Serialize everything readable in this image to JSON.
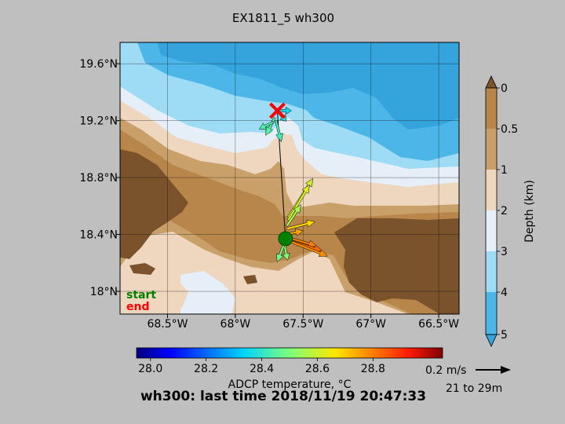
{
  "chart_data": {
    "type": "scatter",
    "title": "EX1811_5 wh300",
    "subtitle": "wh300: last time 2018/11/19 20:47:33",
    "x_ticks": [
      "68.5°W",
      "68°W",
      "67.5°W",
      "67°W",
      "66.5°W"
    ],
    "y_ticks": [
      "19.6°N",
      "19.2°N",
      "18.8°N",
      "18.4°N",
      "18°N"
    ],
    "xlim": [
      -68.85,
      -66.35
    ],
    "ylim": [
      17.84,
      19.75
    ],
    "legend": {
      "start": "start",
      "end": "end",
      "start_color": "#008000",
      "end_color": "#ff0000"
    },
    "track": {
      "start": {
        "lon": -67.63,
        "lat": 18.37
      },
      "end": {
        "lon": -67.69,
        "lat": 19.27
      }
    },
    "vectors": [
      {
        "lon": -67.69,
        "lat": 19.27,
        "u": 0.08,
        "v": 0.0,
        "temp": 28.35
      },
      {
        "lon": -67.69,
        "lat": 19.27,
        "u": 0.05,
        "v": -0.06,
        "temp": 28.38
      },
      {
        "lon": -67.71,
        "lat": 19.22,
        "u": -0.05,
        "v": -0.1,
        "temp": 28.45
      },
      {
        "lon": -67.7,
        "lat": 19.2,
        "u": 0.03,
        "v": -0.12,
        "temp": 28.42
      },
      {
        "lon": -67.72,
        "lat": 19.19,
        "u": -0.08,
        "v": -0.04,
        "temp": 28.44
      },
      {
        "lon": -67.61,
        "lat": 18.52,
        "u": 0.14,
        "v": 0.22,
        "temp": 28.6
      },
      {
        "lon": -67.61,
        "lat": 18.5,
        "u": 0.12,
        "v": 0.2,
        "temp": 28.62
      },
      {
        "lon": -67.62,
        "lat": 18.46,
        "u": 0.08,
        "v": 0.12,
        "temp": 28.55
      },
      {
        "lon": -67.62,
        "lat": 18.44,
        "u": 0.16,
        "v": 0.04,
        "temp": 28.68
      },
      {
        "lon": -67.63,
        "lat": 18.4,
        "u": 0.1,
        "v": 0.02,
        "temp": 28.75
      },
      {
        "lon": -67.62,
        "lat": 18.38,
        "u": 0.17,
        "v": -0.05,
        "temp": 28.8
      },
      {
        "lon": -67.62,
        "lat": 18.36,
        "u": 0.2,
        "v": -0.06,
        "temp": 28.82
      },
      {
        "lon": -67.62,
        "lat": 18.36,
        "u": 0.23,
        "v": -0.09,
        "temp": 28.78
      },
      {
        "lon": -67.64,
        "lat": 18.33,
        "u": 0.02,
        "v": -0.09,
        "temp": 28.5
      },
      {
        "lon": -67.64,
        "lat": 18.33,
        "u": -0.04,
        "v": -0.1,
        "temp": 28.48
      }
    ],
    "depth_colorbar": {
      "label": "Depth (km)",
      "ticks": [
        "0",
        "0.5",
        "1",
        "2",
        "3",
        "4",
        "5"
      ],
      "colors": [
        "#b8864a",
        "#c9a06a",
        "#efd6be",
        "#e6eff7",
        "#9ddcf4",
        "#4db6e8"
      ]
    },
    "temp_colorbar": {
      "label": "ADCP temperature, °C",
      "ticks": [
        "28.0",
        "28.2",
        "28.4",
        "28.6",
        "28.8"
      ],
      "range": [
        27.95,
        29.05
      ]
    },
    "scale_arrow": {
      "label": "0.2 m/s",
      "depth_label": "21 to 29m"
    }
  }
}
